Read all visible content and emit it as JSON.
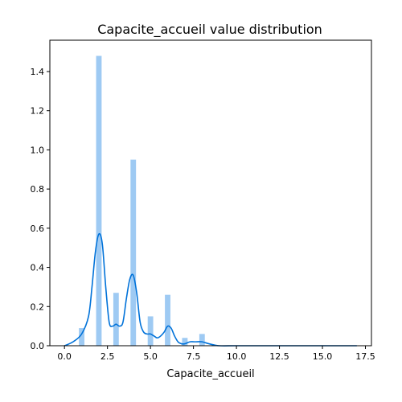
{
  "chart_data": {
    "type": "bar",
    "title": "Capacite_accueil value distribution",
    "xlabel": "Capacite_accueil",
    "ylabel": "",
    "xlim": [
      -0.85,
      17.85
    ],
    "ylim": [
      0,
      1.56
    ],
    "x_ticks": [
      0.0,
      2.5,
      5.0,
      7.5,
      10.0,
      12.5,
      15.0,
      17.5
    ],
    "x_tick_labels": [
      "0.0",
      "2.5",
      "5.0",
      "7.5",
      "10.0",
      "12.5",
      "15.0",
      "17.5"
    ],
    "y_ticks": [
      0.0,
      0.2,
      0.4,
      0.6,
      0.8,
      1.0,
      1.2,
      1.4
    ],
    "y_tick_labels": [
      "0.0",
      "0.2",
      "0.4",
      "0.6",
      "0.8",
      "1.0",
      "1.2",
      "1.4"
    ],
    "grid": false,
    "bar_color": "#9ecaf3",
    "line_color": "#0072d9",
    "histogram": {
      "bin_width": 0.32,
      "bins": [
        {
          "x": 1.0,
          "density": 0.09
        },
        {
          "x": 2.0,
          "density": 1.48
        },
        {
          "x": 3.0,
          "density": 0.27
        },
        {
          "x": 4.0,
          "density": 0.95
        },
        {
          "x": 5.0,
          "density": 0.15
        },
        {
          "x": 6.0,
          "density": 0.26
        },
        {
          "x": 7.0,
          "density": 0.04
        },
        {
          "x": 8.0,
          "density": 0.06
        }
      ]
    },
    "kde": {
      "x": [
        0.0,
        0.5,
        1.0,
        1.4,
        1.6,
        1.8,
        2.0,
        2.2,
        2.4,
        2.6,
        2.8,
        3.0,
        3.2,
        3.4,
        3.6,
        3.8,
        4.0,
        4.2,
        4.4,
        4.6,
        4.8,
        5.0,
        5.2,
        5.4,
        5.6,
        5.8,
        6.0,
        6.2,
        6.4,
        6.6,
        6.8,
        7.0,
        7.3,
        7.6,
        8.0,
        8.4,
        9.0,
        10.0,
        12.0,
        14.0,
        16.0,
        17.0
      ],
      "y": [
        0.0,
        0.02,
        0.06,
        0.15,
        0.3,
        0.48,
        0.57,
        0.52,
        0.3,
        0.12,
        0.1,
        0.11,
        0.1,
        0.12,
        0.24,
        0.34,
        0.36,
        0.27,
        0.12,
        0.07,
        0.06,
        0.06,
        0.05,
        0.04,
        0.05,
        0.07,
        0.1,
        0.09,
        0.05,
        0.02,
        0.01,
        0.01,
        0.02,
        0.02,
        0.02,
        0.01,
        0.0,
        0.0,
        0.0,
        0.0,
        0.0,
        0.0
      ]
    }
  }
}
